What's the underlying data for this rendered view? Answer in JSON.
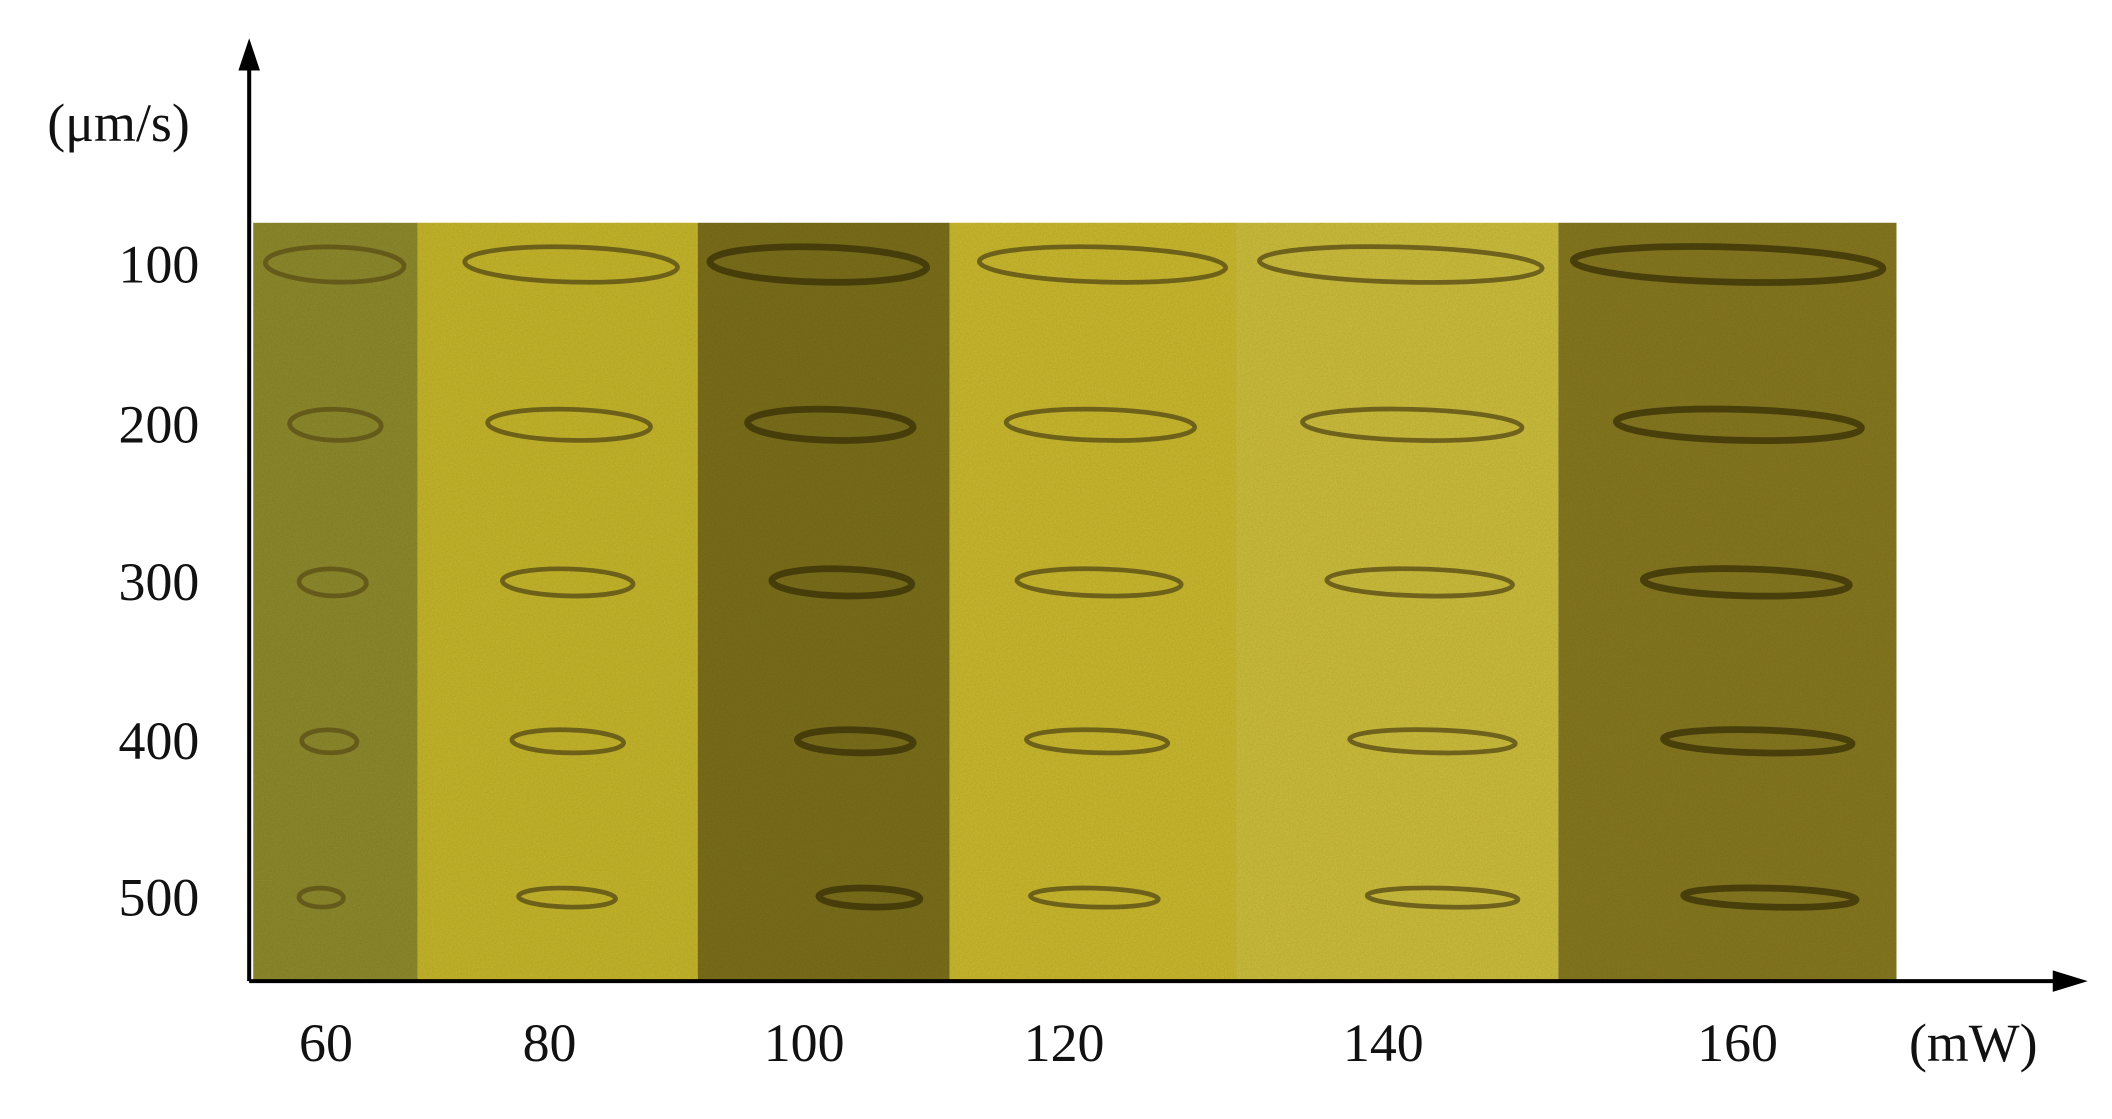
{
  "y_axis": {
    "unit": "(μm/s)",
    "labels": [
      "100",
      "200",
      "300",
      "400",
      "500"
    ]
  },
  "x_axis": {
    "unit": "(mW)",
    "labels": [
      "60",
      "80",
      "100",
      "120",
      "140",
      "160"
    ]
  }
}
